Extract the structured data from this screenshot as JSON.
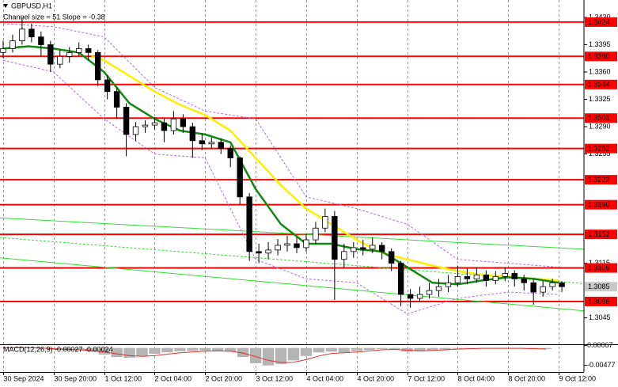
{
  "chart_data": {
    "type": "candlestick",
    "title": "GBPUSD,H1",
    "subtitle": "Channel size = 51 Slope = -0.38",
    "xlim": [
      -1,
      184
    ],
    "ylim": [
      1.30122,
      1.34523
    ],
    "xticks": [
      {
        "value": 0,
        "label": "30 Sep 2024"
      },
      {
        "value": 16,
        "label": "30 Sep 20:00"
      },
      {
        "value": 32,
        "label": "1 Oct 12:00"
      },
      {
        "value": 48,
        "label": "2 Oct 04:00"
      },
      {
        "value": 64,
        "label": "2 Oct 20:00"
      },
      {
        "value": 80,
        "label": "3 Oct 12:00"
      },
      {
        "value": 96,
        "label": "4 Oct 04:00"
      },
      {
        "value": 112,
        "label": "4 Oct 20:00"
      },
      {
        "value": 128,
        "label": "7 Oct 12:00"
      },
      {
        "value": 144,
        "label": "8 Oct 04:00"
      },
      {
        "value": 160,
        "label": "8 Oct 20:00"
      },
      {
        "value": 176,
        "label": "9 Oct 12:00"
      }
    ],
    "yticks": [
      {
        "value": 1.343,
        "label": "1.3430"
      },
      1.3395,
      {
        "value": 1.336,
        "label": "1.3360"
      },
      1.3325,
      {
        "value": 1.329,
        "label": "1.3290"
      },
      1.3255,
      1.3115,
      1.3045
    ],
    "levels": [
      1.3424,
      {
        "value": 1.338,
        "label": "1.3380"
      },
      1.3344,
      1.3301,
      1.3262,
      1.3222,
      {
        "value": 1.319,
        "label": "1.3190"
      },
      1.3152,
      1.3109,
      1.3066
    ],
    "level_color": "#ff0000",
    "current_price": 1.3085,
    "candles": {
      "x": [
        0,
        3,
        6,
        9,
        12,
        15,
        18,
        21,
        24,
        27,
        30,
        33,
        36,
        39,
        42,
        45,
        48,
        51,
        54,
        57,
        60,
        63,
        66,
        69,
        72,
        75,
        78,
        81,
        84,
        87,
        90,
        93,
        96,
        99,
        102,
        105,
        108,
        111,
        114,
        117,
        120,
        123,
        126,
        129,
        132,
        135,
        138,
        141,
        144,
        147,
        150,
        153,
        156,
        159,
        162,
        165,
        168,
        171,
        174,
        177
      ],
      "open": [
        1.3385,
        1.339,
        1.34,
        1.3415,
        1.3405,
        1.3395,
        1.337,
        1.338,
        1.3385,
        1.339,
        1.3385,
        1.335,
        1.3335,
        1.3315,
        1.328,
        1.329,
        1.3292,
        1.3295,
        1.3285,
        1.33,
        1.329,
        1.3272,
        1.3268,
        1.327,
        1.3262,
        1.325,
        1.32,
        1.313,
        1.3128,
        1.3132,
        1.3138,
        1.314,
        1.3135,
        1.3145,
        1.316,
        1.3175,
        1.312,
        1.313,
        1.3135,
        1.3133,
        1.3138,
        1.313,
        1.3115,
        1.3075,
        1.307,
        1.3075,
        1.308,
        1.3085,
        1.309,
        1.3098,
        1.3095,
        1.31,
        1.3093,
        1.3098,
        1.3102,
        1.3095,
        1.309,
        1.3078,
        1.3085,
        1.309
      ],
      "high": [
        1.34,
        1.3408,
        1.343,
        1.3422,
        1.3412,
        1.34,
        1.3388,
        1.3392,
        1.3398,
        1.3395,
        1.3388,
        1.3356,
        1.334,
        1.332,
        1.3296,
        1.3298,
        1.3302,
        1.33,
        1.331,
        1.3306,
        1.3295,
        1.3282,
        1.3276,
        1.3275,
        1.3266,
        1.3252,
        1.3205,
        1.314,
        1.3142,
        1.3146,
        1.315,
        1.3148,
        1.3152,
        1.3168,
        1.3185,
        1.3182,
        1.314,
        1.3142,
        1.3145,
        1.3148,
        1.3142,
        1.3134,
        1.3118,
        1.3082,
        1.3085,
        1.309,
        1.3095,
        1.31,
        1.3112,
        1.3108,
        1.311,
        1.3106,
        1.3105,
        1.311,
        1.3106,
        1.31,
        1.3094,
        1.3092,
        1.3095,
        1.3092
      ],
      "low": [
        1.3378,
        1.3385,
        1.3395,
        1.3398,
        1.338,
        1.336,
        1.3365,
        1.3372,
        1.338,
        1.3375,
        1.3342,
        1.3325,
        1.33,
        1.3252,
        1.3272,
        1.3282,
        1.3286,
        1.327,
        1.328,
        1.3282,
        1.325,
        1.326,
        1.3262,
        1.3255,
        1.3238,
        1.319,
        1.3118,
        1.3115,
        1.312,
        1.3125,
        1.313,
        1.3128,
        1.313,
        1.314,
        1.3155,
        1.3068,
        1.311,
        1.3122,
        1.3125,
        1.3128,
        1.312,
        1.3105,
        1.306,
        1.3058,
        1.3065,
        1.307,
        1.3072,
        1.3078,
        1.3085,
        1.3088,
        1.309,
        1.3085,
        1.3088,
        1.3092,
        1.3085,
        1.308,
        1.3062,
        1.3072,
        1.308,
        1.3078
      ],
      "close": [
        1.339,
        1.34,
        1.3415,
        1.3405,
        1.3395,
        1.337,
        1.338,
        1.3385,
        1.339,
        1.3385,
        1.335,
        1.3335,
        1.3315,
        1.328,
        1.329,
        1.3292,
        1.3295,
        1.3285,
        1.33,
        1.329,
        1.3272,
        1.3268,
        1.327,
        1.3262,
        1.325,
        1.32,
        1.313,
        1.3128,
        1.3132,
        1.3138,
        1.314,
        1.3135,
        1.3145,
        1.316,
        1.3175,
        1.312,
        1.313,
        1.3135,
        1.3133,
        1.3138,
        1.313,
        1.3115,
        1.3075,
        1.307,
        1.3075,
        1.308,
        1.3085,
        1.309,
        1.3098,
        1.3095,
        1.31,
        1.3093,
        1.3098,
        1.3102,
        1.3095,
        1.309,
        1.3078,
        1.3085,
        1.309,
        1.3085
      ]
    },
    "lines": [
      {
        "color": "#b070e0",
        "style": "dashed",
        "x": [
          0,
          16,
          32,
          48,
          64,
          80,
          96,
          112,
          128,
          144,
          160,
          176
        ],
        "values": [
          1.3422,
          1.3418,
          1.3405,
          1.334,
          1.331,
          1.33,
          1.32,
          1.3185,
          1.3165,
          1.312,
          1.3115,
          1.311
        ]
      },
      {
        "color": "#b070e0",
        "style": "dashed",
        "x": [
          0,
          16,
          32,
          48,
          64,
          80,
          96,
          112,
          128,
          144,
          160,
          176
        ],
        "values": [
          1.3375,
          1.336,
          1.33,
          1.3255,
          1.325,
          1.312,
          1.3095,
          1.309,
          1.305,
          1.307,
          1.3078,
          1.3075
        ]
      },
      {
        "color": "#33dd33",
        "style": "solid",
        "x": [
          -1,
          184
        ],
        "values": [
          1.3173,
          1.3133
        ]
      },
      {
        "color": "#33dd33",
        "style": "dashed",
        "x": [
          -1,
          184
        ],
        "values": [
          1.3148,
          1.3089
        ]
      },
      {
        "color": "#33dd33",
        "style": "solid",
        "x": [
          -1,
          184
        ],
        "values": [
          1.3122,
          1.3054
        ]
      },
      {
        "color": "#ffee00",
        "style": "thick",
        "x": [
          28,
          32,
          40,
          48,
          56,
          64,
          72,
          80,
          88,
          96,
          104,
          112,
          120,
          128,
          136,
          144,
          152,
          160,
          168,
          176
        ],
        "values": [
          1.338,
          1.3375,
          1.3355,
          1.3335,
          1.3318,
          1.3305,
          1.3285,
          1.325,
          1.3215,
          1.3185,
          1.3165,
          1.3145,
          1.3128,
          1.312,
          1.3112,
          1.3105,
          1.31,
          1.3098,
          1.3095,
          1.3093
        ]
      },
      {
        "color": "#118811",
        "style": "thick",
        "x": [
          0,
          8,
          16,
          24,
          32,
          40,
          48,
          56,
          64,
          72,
          80,
          88,
          96,
          104,
          112,
          120,
          128,
          136,
          144,
          152,
          160,
          168,
          176
        ],
        "values": [
          1.339,
          1.3393,
          1.339,
          1.3385,
          1.336,
          1.332,
          1.33,
          1.3285,
          1.328,
          1.327,
          1.321,
          1.3165,
          1.314,
          1.314,
          1.3133,
          1.313,
          1.311,
          1.309,
          1.3088,
          1.3093,
          1.3097,
          1.3095,
          1.309
        ]
      }
    ],
    "macd": {
      "title": "MACD(12,26,9) -0.00027 -0.00024",
      "ylim": [
        -0.00658,
        0.0008
      ],
      "yticks": [
        0.00067,
        -0.00477
      ],
      "hist_color": "#b4b4b4",
      "signal_color": "#e03030",
      "x": [
        0,
        4,
        8,
        12,
        16,
        20,
        24,
        28,
        32,
        36,
        40,
        44,
        48,
        52,
        56,
        60,
        64,
        68,
        72,
        76,
        80,
        84,
        88,
        92,
        96,
        100,
        104,
        108,
        112,
        116,
        120,
        124,
        128,
        132,
        136,
        140,
        144,
        148,
        152,
        156,
        160,
        164,
        168,
        172
      ],
      "histogram": [
        0.0001,
        0.0002,
        0.0001,
        -0.0002,
        -0.0005,
        -0.0006,
        -0.0006,
        -0.001,
        -0.0018,
        -0.0025,
        -0.0027,
        -0.0022,
        -0.0016,
        -0.0012,
        -0.0009,
        -0.0008,
        -0.0007,
        -0.0008,
        -0.001,
        -0.0025,
        -0.0042,
        -0.0048,
        -0.0044,
        -0.0034,
        -0.0022,
        -0.0012,
        -0.001,
        -0.0012,
        -0.0008,
        -0.0005,
        -0.0003,
        -0.0004,
        -0.001,
        -0.0009,
        -0.0006,
        -0.0004,
        -0.0002,
        -0.0002,
        -0.0001,
        -0.0001,
        -0.0002,
        -0.0001,
        -0.0002,
        -0.0003
      ],
      "signal": [
        0.0001,
        0.0001,
        0.0001,
        0,
        -0.0002,
        -0.0004,
        -0.0005,
        -0.0007,
        -0.0011,
        -0.0016,
        -0.0021,
        -0.0023,
        -0.0021,
        -0.0017,
        -0.0013,
        -0.0011,
        -0.0009,
        -0.0008,
        -0.0009,
        -0.0014,
        -0.0024,
        -0.0034,
        -0.004,
        -0.0039,
        -0.0032,
        -0.0022,
        -0.0015,
        -0.0013,
        -0.0011,
        -0.0008,
        -0.0005,
        -0.0004,
        -0.0006,
        -0.0008,
        -0.0007,
        -0.0005,
        -0.0003,
        -0.0002,
        -0.0001,
        -0.0001,
        -0.0001,
        -0.0001,
        -0.0002,
        -0.0003
      ]
    }
  }
}
